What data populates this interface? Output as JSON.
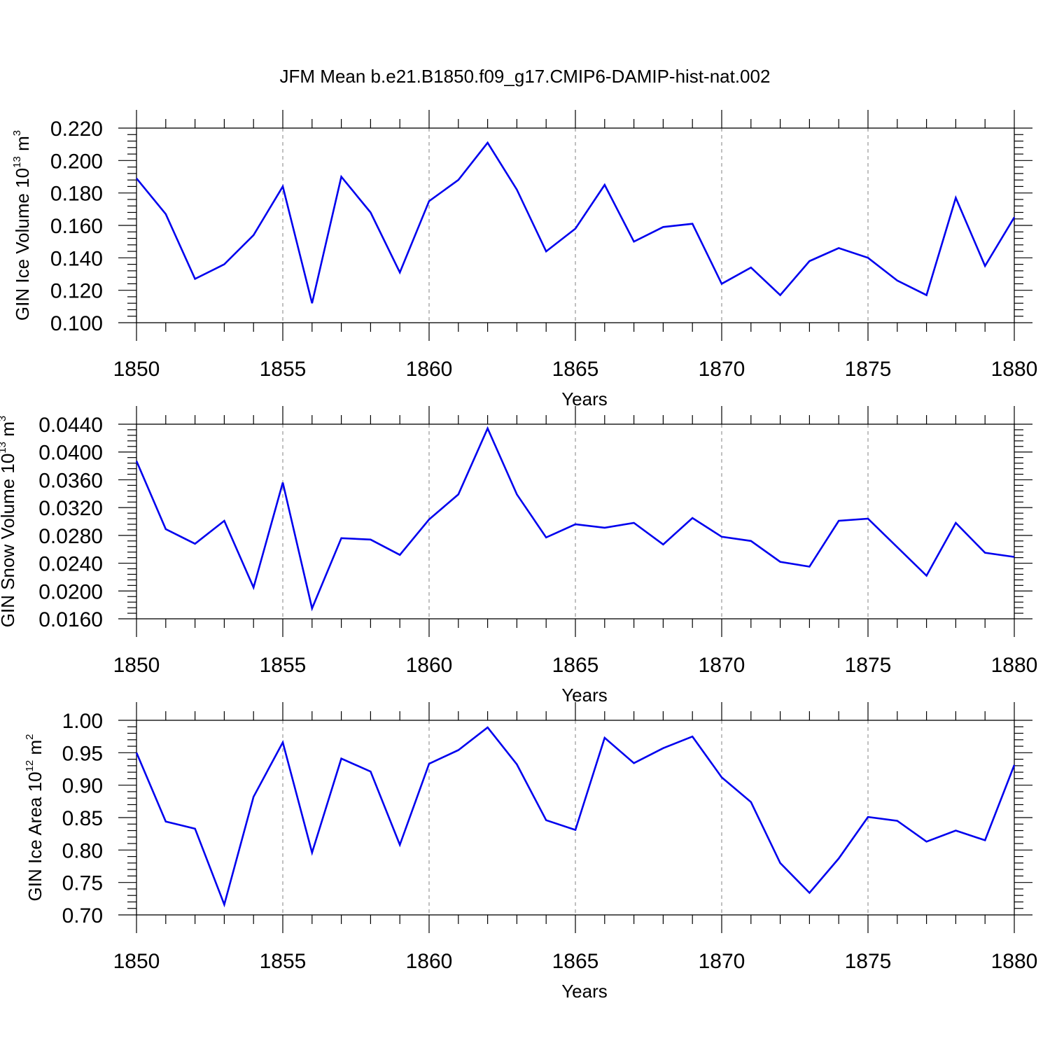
{
  "chart_data": {
    "title": "JFM Mean b.e21.B1850.f09_g17.CMIP6-DAMIP-hist-nat.002",
    "type": "line",
    "series_color": "#0000ee",
    "panels": [
      {
        "ylabel_base": "GIN Ice Volume 10",
        "ylabel_exp": "13",
        "ylabel_unit": " m",
        "ylabel_unit_exp": "3",
        "xlabel": "Years",
        "xlim": [
          1850,
          1880
        ],
        "ylim": [
          0.1,
          0.22
        ],
        "yticks": [
          "0.100",
          "0.120",
          "0.140",
          "0.160",
          "0.180",
          "0.200",
          "0.220"
        ],
        "xticks": [
          "1850",
          "1855",
          "1860",
          "1865",
          "1870",
          "1875",
          "1880"
        ],
        "x": [
          1850,
          1851,
          1852,
          1853,
          1854,
          1855,
          1856,
          1857,
          1858,
          1859,
          1860,
          1861,
          1862,
          1863,
          1864,
          1865,
          1866,
          1867,
          1868,
          1869,
          1870,
          1871,
          1872,
          1873,
          1874,
          1875,
          1876,
          1877,
          1878,
          1879,
          1880
        ],
        "values": [
          0.189,
          0.167,
          0.127,
          0.136,
          0.154,
          0.184,
          0.112,
          0.19,
          0.168,
          0.131,
          0.175,
          0.188,
          0.211,
          0.182,
          0.144,
          0.158,
          0.185,
          0.15,
          0.159,
          0.161,
          0.124,
          0.134,
          0.117,
          0.138,
          0.146,
          0.14,
          0.126,
          0.117,
          0.177,
          0.135,
          0.165
        ]
      },
      {
        "ylabel_base": "GIN Snow Volume 10",
        "ylabel_exp": "13",
        "ylabel_unit": " m",
        "ylabel_unit_exp": "3",
        "xlabel": "Years",
        "xlim": [
          1850,
          1880
        ],
        "ylim": [
          0.016,
          0.044
        ],
        "yticks": [
          "0.0160",
          "0.0200",
          "0.0240",
          "0.0280",
          "0.0320",
          "0.0360",
          "0.0400",
          "0.0440"
        ],
        "xticks": [
          "1850",
          "1855",
          "1860",
          "1865",
          "1870",
          "1875",
          "1880"
        ],
        "x": [
          1850,
          1851,
          1852,
          1853,
          1854,
          1855,
          1856,
          1857,
          1858,
          1859,
          1860,
          1861,
          1862,
          1863,
          1864,
          1865,
          1866,
          1867,
          1868,
          1869,
          1870,
          1871,
          1872,
          1873,
          1874,
          1875,
          1876,
          1877,
          1878,
          1879,
          1880
        ],
        "values": [
          0.0387,
          0.0289,
          0.0268,
          0.0301,
          0.0205,
          0.0356,
          0.0175,
          0.0276,
          0.0274,
          0.0252,
          0.0303,
          0.0339,
          0.0434,
          0.0339,
          0.0277,
          0.0296,
          0.0291,
          0.0298,
          0.0267,
          0.0305,
          0.0278,
          0.0272,
          0.0242,
          0.0235,
          0.0301,
          0.0304,
          0.0263,
          0.0222,
          0.0298,
          0.0255,
          0.0249
        ]
      },
      {
        "ylabel_base": "GIN Ice Area 10",
        "ylabel_exp": "12",
        "ylabel_unit": " m",
        "ylabel_unit_exp": "2",
        "xlabel": "Years",
        "xlim": [
          1850,
          1880
        ],
        "ylim": [
          0.7,
          1.0
        ],
        "yticks": [
          "0.70",
          "0.75",
          "0.80",
          "0.85",
          "0.90",
          "0.95",
          "1.00"
        ],
        "xticks": [
          "1850",
          "1855",
          "1860",
          "1865",
          "1870",
          "1875",
          "1880"
        ],
        "x": [
          1850,
          1851,
          1852,
          1853,
          1854,
          1855,
          1856,
          1857,
          1858,
          1859,
          1860,
          1861,
          1862,
          1863,
          1864,
          1865,
          1866,
          1867,
          1868,
          1869,
          1870,
          1871,
          1872,
          1873,
          1874,
          1875,
          1876,
          1877,
          1878,
          1879,
          1880
        ],
        "values": [
          0.95,
          0.844,
          0.833,
          0.716,
          0.882,
          0.966,
          0.796,
          0.941,
          0.921,
          0.808,
          0.933,
          0.954,
          0.989,
          0.932,
          0.846,
          0.831,
          0.973,
          0.934,
          0.957,
          0.975,
          0.912,
          0.874,
          0.78,
          0.734,
          0.787,
          0.851,
          0.845,
          0.813,
          0.83,
          0.815,
          0.931
        ]
      }
    ]
  }
}
